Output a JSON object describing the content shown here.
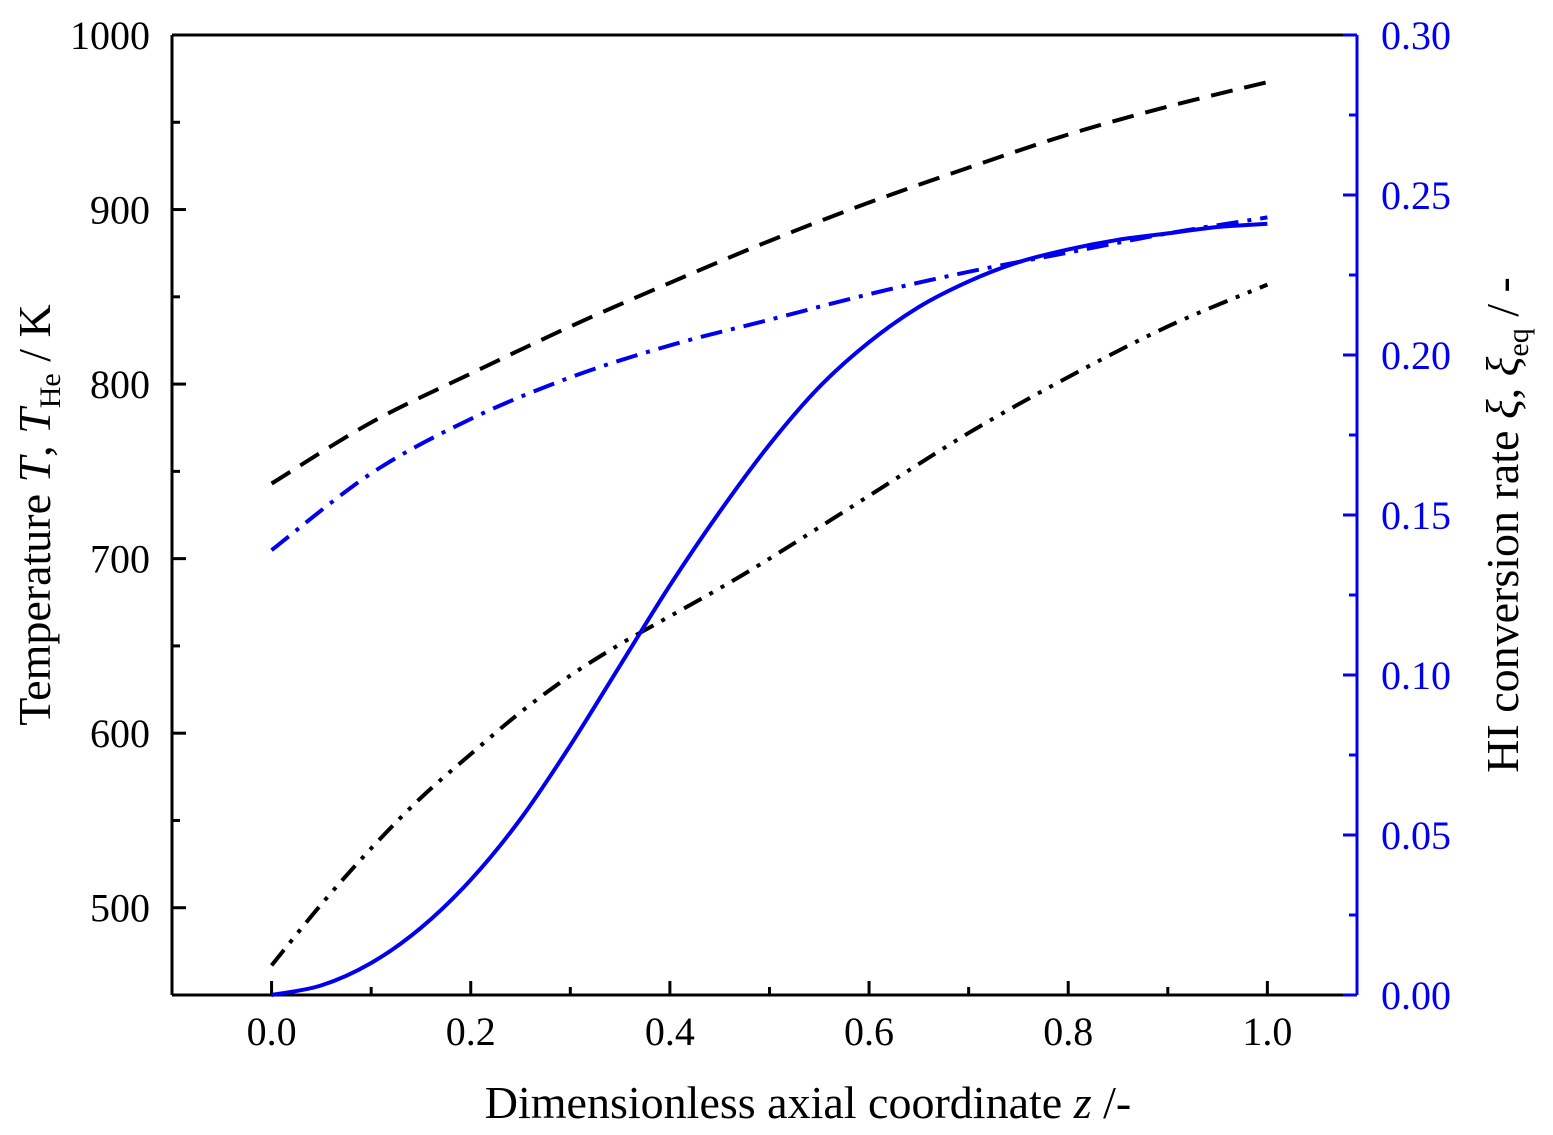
{
  "chart_data": {
    "type": "line",
    "xlabel": {
      "prefix": "Dimensionless axial coordinate ",
      "var": "z",
      "suffix": " /-"
    },
    "ylabel_left": {
      "text": "Temperature ",
      "var1": "T",
      "sep": ", ",
      "var2": "T",
      "sub2": "He",
      "suffix": " / K"
    },
    "ylabel_right": {
      "text": "HI conversion rate  ",
      "var1": "ξ",
      "sep": ", ",
      "var2": "ξ",
      "sub2": "eq",
      "suffix": "  / -"
    },
    "xlim": [
      -0.1,
      1.09
    ],
    "ylim_left": [
      450,
      1000
    ],
    "ylim_right": [
      0,
      0.3
    ],
    "x_ticks": [
      0.0,
      0.2,
      0.4,
      0.6,
      0.8,
      1.0
    ],
    "x_tick_labels": [
      "0.0",
      "0.2",
      "0.4",
      "0.6",
      "0.8",
      "1.0"
    ],
    "y_left_ticks": [
      500,
      600,
      700,
      800,
      900,
      1000
    ],
    "y_left_tick_labels": [
      "500",
      "600",
      "700",
      "800",
      "900",
      "1000"
    ],
    "y_right_ticks": [
      0.0,
      0.05,
      0.1,
      0.15,
      0.2,
      0.25,
      0.3
    ],
    "y_right_tick_labels": [
      "0.00",
      "0.05",
      "0.10",
      "0.15",
      "0.20",
      "0.25",
      "0.30"
    ],
    "series": [
      {
        "name": "T_He",
        "axis": "left",
        "style": "dashed",
        "color": "#000000",
        "x": [
          0,
          0.1,
          0.2,
          0.3,
          0.4,
          0.5,
          0.6,
          0.7,
          0.8,
          0.9,
          1.0
        ],
        "y": [
          743,
          778,
          806,
          833,
          858,
          882,
          904,
          924,
          943,
          959,
          973
        ]
      },
      {
        "name": "T",
        "axis": "left",
        "style": "dash-dot-dot",
        "color": "#000000",
        "x": [
          0,
          0.05,
          0.1,
          0.15,
          0.2,
          0.25,
          0.3,
          0.35,
          0.4,
          0.45,
          0.5,
          0.6,
          0.7,
          0.8,
          0.9,
          1.0
        ],
        "y": [
          467,
          502,
          534,
          563,
          588,
          612,
          633,
          651,
          667,
          683,
          700,
          736,
          772,
          804,
          833,
          857
        ]
      },
      {
        "name": "ξ_eq",
        "axis": "right",
        "style": "dash-dot",
        "color": "#0000ee",
        "x": [
          0,
          0.1,
          0.2,
          0.3,
          0.4,
          0.5,
          0.6,
          0.7,
          0.8,
          0.9,
          1.0
        ],
        "y": [
          0.139,
          0.163,
          0.18,
          0.193,
          0.203,
          0.211,
          0.219,
          0.226,
          0.232,
          0.238,
          0.243
        ]
      },
      {
        "name": "ξ",
        "axis": "right",
        "style": "solid",
        "color": "#0000ee",
        "x": [
          0,
          0.05,
          0.1,
          0.15,
          0.2,
          0.25,
          0.3,
          0.35,
          0.4,
          0.45,
          0.5,
          0.55,
          0.6,
          0.65,
          0.7,
          0.75,
          0.8,
          0.85,
          0.9,
          0.95,
          1.0
        ],
        "y": [
          0.0,
          0.003,
          0.01,
          0.021,
          0.036,
          0.055,
          0.078,
          0.103,
          0.128,
          0.151,
          0.172,
          0.19,
          0.204,
          0.215,
          0.223,
          0.229,
          0.233,
          0.236,
          0.238,
          0.24,
          0.241
        ]
      }
    ],
    "colors": {
      "left_axis": "#000000",
      "right_axis": "#0000ee"
    }
  }
}
